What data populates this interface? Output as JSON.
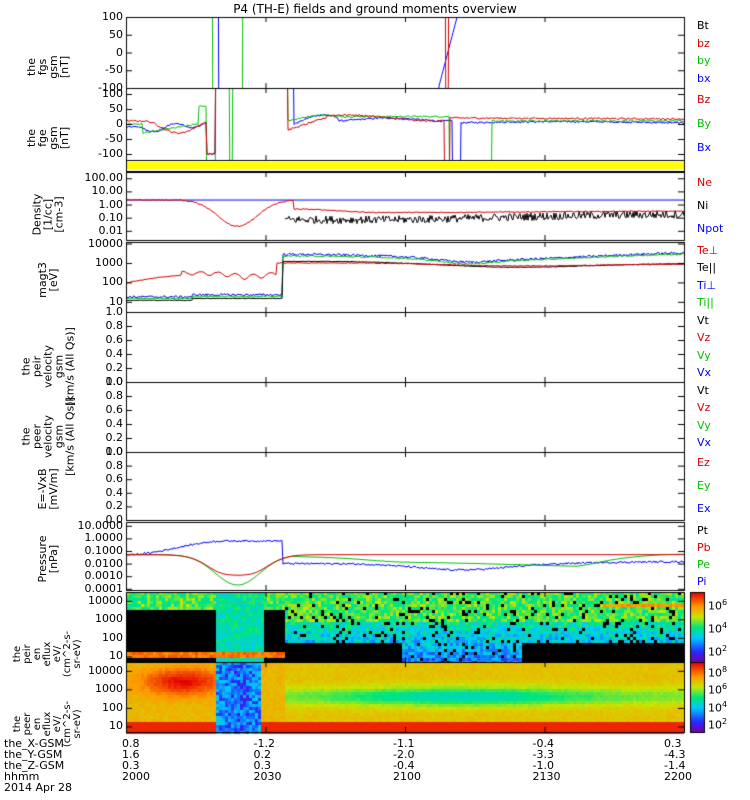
{
  "title": "P4 (TH-E) fields and ground moments overview",
  "chart_data": {
    "type": "line",
    "time_range": [
      "2014-04-28 20:00",
      "2014-04-28 22:00"
    ],
    "time_ticks": [
      "2000",
      "2030",
      "2100",
      "2130",
      "2200"
    ],
    "panels": [
      {
        "id": "fgs",
        "ylabel": "the\nfgs\ngsm\n[nT]",
        "ylim": [
          -100,
          100
        ],
        "yticks": [
          "100",
          "50",
          "0",
          "-50",
          "-100"
        ],
        "legend": [
          {
            "name": "Bt",
            "color": "#000000"
          },
          {
            "name": "bz",
            "color": "#d40000"
          },
          {
            "name": "by",
            "color": "#00c000"
          },
          {
            "name": "bx",
            "color": "#0000ff"
          }
        ]
      },
      {
        "id": "fge",
        "ylabel": "the\nfge\ngsm\n[nT]",
        "ylim": [
          -120,
          120
        ],
        "yticks": [
          "100",
          "50",
          "0",
          "-50",
          "-100"
        ],
        "legend": [
          {
            "name": "Bz",
            "color": "#d40000"
          },
          {
            "name": "By",
            "color": "#00c000"
          },
          {
            "name": "Bx",
            "color": "#0000ff"
          }
        ]
      },
      {
        "id": "density",
        "ylabel": "Density\n[1/cc]\n[cm-3]",
        "ylim": [
          0.002,
          300
        ],
        "yticks": [
          "100.00",
          "10.00",
          "1.00",
          "0.10",
          "0.01"
        ],
        "log": true,
        "legend": [
          {
            "name": "Ne",
            "color": "#d40000"
          },
          {
            "name": "Ni",
            "color": "#000000"
          },
          {
            "name": "Npot",
            "color": "#0000ff"
          }
        ]
      },
      {
        "id": "temp",
        "ylabel": "magt3\n[eV]",
        "ylim": [
          3,
          12000
        ],
        "yticks": [
          "10000",
          "1000",
          "100",
          "10"
        ],
        "log": true,
        "legend": [
          {
            "name": "Te⊥",
            "color": "#d40000"
          },
          {
            "name": "Te||",
            "color": "#000000"
          },
          {
            "name": "Ti⊥",
            "color": "#0000ff"
          },
          {
            "name": "Ti||",
            "color": "#00c000"
          }
        ]
      },
      {
        "id": "peir_vel",
        "ylabel": "the\npeir\nvelocity\ngsm\n[km/s (All Qs)]",
        "ylim": [
          0,
          1
        ],
        "yticks": [
          "1.0",
          "0.8",
          "0.6",
          "0.4",
          "0.2",
          "0.0"
        ],
        "legend": [
          {
            "name": "Vt",
            "color": "#000000"
          },
          {
            "name": "Vz",
            "color": "#d40000"
          },
          {
            "name": "Vy",
            "color": "#00c000"
          },
          {
            "name": "Vx",
            "color": "#0000ff"
          }
        ]
      },
      {
        "id": "peer_vel",
        "ylabel": "the\npeer\nvelocity\ngsm\n[km/s (All Qs)]",
        "ylim": [
          0,
          1
        ],
        "yticks": [
          "1.0",
          "0.8",
          "0.6",
          "0.4",
          "0.2",
          "0.0"
        ],
        "legend": [
          {
            "name": "Vt",
            "color": "#000000"
          },
          {
            "name": "Vz",
            "color": "#d40000"
          },
          {
            "name": "Vy",
            "color": "#00c000"
          },
          {
            "name": "Vx",
            "color": "#0000ff"
          }
        ]
      },
      {
        "id": "efield",
        "ylabel": "E=-VxB\n[mV/m]",
        "ylim": [
          0,
          1
        ],
        "yticks": [
          "1.0",
          "0.8",
          "0.6",
          "0.4",
          "0.2",
          "0.0"
        ],
        "legend": [
          {
            "name": "Ez",
            "color": "#d40000"
          },
          {
            "name": "Ey",
            "color": "#00c000"
          },
          {
            "name": "Ex",
            "color": "#0000ff"
          }
        ]
      },
      {
        "id": "pressure",
        "ylabel": "Pressure\n[nPa]",
        "ylim": [
          8e-05,
          20
        ],
        "yticks": [
          "10.0000",
          "1.0000",
          "0.1000",
          "0.0100",
          "0.0010",
          "0.0001"
        ],
        "log": true,
        "legend": [
          {
            "name": "Pt",
            "color": "#000000"
          },
          {
            "name": "Pb",
            "color": "#d40000"
          },
          {
            "name": "Pe",
            "color": "#00c000"
          },
          {
            "name": "Pi",
            "color": "#0000ff"
          }
        ]
      },
      {
        "id": "peir_spec",
        "ylabel": "the\npeir\nen\neflux\neV/\n(cm^2-s-\nsr-eV)",
        "ylim": [
          5,
          30000
        ],
        "yticks": [
          "10000",
          "1000",
          "100",
          "10"
        ],
        "log": true,
        "colorbar": [
          "10^6",
          "10^4",
          "10^2"
        ]
      },
      {
        "id": "peer_spec",
        "ylabel": "the\npeer\nen\neflux\neV/\n(cm^2-s-\nsr-eV)",
        "ylim": [
          5,
          30000
        ],
        "yticks": [
          "10000",
          "1000",
          "100",
          "10"
        ],
        "log": true,
        "colorbar": [
          "10^8",
          "10^6",
          "10^4",
          "10^2"
        ]
      }
    ],
    "position_table": {
      "rows": [
        {
          "label": "the_X-GSM",
          "values": [
            "0.8",
            "-1.2",
            "-1.1",
            "-0.4",
            "0.3"
          ]
        },
        {
          "label": "the_Y-GSM",
          "values": [
            "1.6",
            "0.2",
            "-2.0",
            "-3.3",
            "-4.3"
          ]
        },
        {
          "label": "the_Z-GSM",
          "values": [
            "0.3",
            "0.3",
            "-0.4",
            "-1.0",
            "-1.4"
          ]
        },
        {
          "label": "hhmm",
          "values": [
            "2000",
            "2030",
            "2100",
            "2130",
            "2200"
          ]
        }
      ],
      "date": "2014 Apr 28"
    }
  }
}
